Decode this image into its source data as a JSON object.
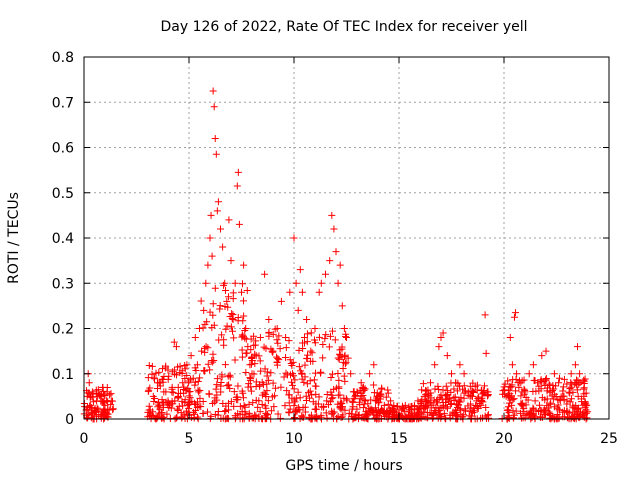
{
  "chart_data": {
    "type": "scatter",
    "title": "Day 126 of 2022, Rate Of TEC Index for receiver yell",
    "xlabel": "GPS time / hours",
    "ylabel": "ROTI / TECUs",
    "xlim": [
      0,
      25
    ],
    "ylim": [
      0,
      0.8
    ],
    "xticks": [
      0,
      5,
      10,
      15,
      20,
      25
    ],
    "xtick_labels": [
      "0",
      "5",
      "10",
      "15",
      "20",
      "25"
    ],
    "yticks": [
      0,
      0.1,
      0.2,
      0.3,
      0.4,
      0.5,
      0.6,
      0.7,
      0.8
    ],
    "ytick_labels": [
      "0",
      "0.1",
      "0.2",
      "0.3",
      "0.4",
      "0.5",
      "0.6",
      "0.7",
      "0.8"
    ],
    "grid": true,
    "marker": "+",
    "series": [
      {
        "name": "ROTI",
        "color": "#ff0000",
        "points": [
          [
            0.1,
            0.02
          ],
          [
            0.15,
            0.05
          ],
          [
            0.2,
            0.1
          ],
          [
            0.25,
            0.08
          ],
          [
            0.3,
            0.03
          ],
          [
            0.4,
            0.06
          ],
          [
            0.5,
            0.02
          ],
          [
            0.6,
            0.04
          ],
          [
            0.7,
            0.01
          ],
          [
            0.8,
            0.05
          ],
          [
            0.9,
            0.07
          ],
          [
            1.0,
            0.03
          ],
          [
            1.1,
            0.06
          ],
          [
            1.2,
            0.02
          ],
          [
            1.3,
            0.04
          ],
          [
            3.1,
            0.02
          ],
          [
            3.3,
            0.05
          ],
          [
            3.5,
            0.08
          ],
          [
            3.6,
            0.03
          ],
          [
            3.8,
            0.06
          ],
          [
            4.0,
            0.04
          ],
          [
            4.2,
            0.07
          ],
          [
            4.3,
            0.17
          ],
          [
            4.4,
            0.16
          ],
          [
            4.5,
            0.05
          ],
          [
            4.7,
            0.08
          ],
          [
            4.9,
            0.12
          ],
          [
            5.0,
            0.06
          ],
          [
            5.1,
            0.14
          ],
          [
            5.2,
            0.09
          ],
          [
            5.3,
            0.18
          ],
          [
            5.4,
            0.12
          ],
          [
            5.5,
            0.2
          ],
          [
            5.6,
            0.15
          ],
          [
            5.7,
            0.24
          ],
          [
            5.8,
            0.3
          ],
          [
            5.9,
            0.34
          ],
          [
            6.0,
            0.4
          ],
          [
            6.05,
            0.45
          ],
          [
            6.1,
            0.36
          ],
          [
            6.15,
            0.725
          ],
          [
            6.2,
            0.69
          ],
          [
            6.25,
            0.62
          ],
          [
            6.3,
            0.585
          ],
          [
            6.35,
            0.46
          ],
          [
            6.4,
            0.48
          ],
          [
            6.5,
            0.42
          ],
          [
            6.6,
            0.38
          ],
          [
            6.7,
            0.3
          ],
          [
            6.8,
            0.26
          ],
          [
            6.9,
            0.44
          ],
          [
            7.0,
            0.35
          ],
          [
            7.1,
            0.22
          ],
          [
            7.2,
            0.3
          ],
          [
            7.3,
            0.515
          ],
          [
            7.35,
            0.545
          ],
          [
            7.4,
            0.43
          ],
          [
            7.5,
            0.28
          ],
          [
            7.6,
            0.34
          ],
          [
            7.7,
            0.2
          ],
          [
            7.8,
            0.16
          ],
          [
            7.9,
            0.12
          ],
          [
            8.0,
            0.1
          ],
          [
            8.2,
            0.14
          ],
          [
            8.4,
            0.18
          ],
          [
            8.6,
            0.32
          ],
          [
            8.8,
            0.22
          ],
          [
            9.0,
            0.15
          ],
          [
            9.2,
            0.2
          ],
          [
            9.4,
            0.26
          ],
          [
            9.6,
            0.18
          ],
          [
            9.8,
            0.28
          ],
          [
            10.0,
            0.4
          ],
          [
            10.1,
            0.3
          ],
          [
            10.2,
            0.24
          ],
          [
            10.3,
            0.33
          ],
          [
            10.4,
            0.28
          ],
          [
            10.5,
            0.18
          ],
          [
            10.6,
            0.22
          ],
          [
            10.8,
            0.15
          ],
          [
            11.0,
            0.2
          ],
          [
            11.2,
            0.28
          ],
          [
            11.3,
            0.3
          ],
          [
            11.5,
            0.32
          ],
          [
            11.7,
            0.35
          ],
          [
            11.8,
            0.45
          ],
          [
            11.9,
            0.42
          ],
          [
            12.0,
            0.37
          ],
          [
            12.1,
            0.3
          ],
          [
            12.2,
            0.34
          ],
          [
            12.3,
            0.25
          ],
          [
            12.4,
            0.2
          ],
          [
            12.5,
            0.18
          ],
          [
            12.7,
            0.1
          ],
          [
            13.0,
            0.06
          ],
          [
            13.2,
            0.08
          ],
          [
            13.4,
            0.04
          ],
          [
            13.6,
            0.1
          ],
          [
            13.8,
            0.12
          ],
          [
            14.0,
            0.05
          ],
          [
            14.3,
            0.03
          ],
          [
            14.6,
            0.04
          ],
          [
            15.0,
            0.02
          ],
          [
            15.3,
            0.03
          ],
          [
            15.6,
            0.02
          ],
          [
            15.9,
            0.04
          ],
          [
            16.2,
            0.05
          ],
          [
            16.5,
            0.08
          ],
          [
            16.7,
            0.12
          ],
          [
            16.9,
            0.16
          ],
          [
            17.0,
            0.18
          ],
          [
            17.1,
            0.19
          ],
          [
            17.3,
            0.14
          ],
          [
            17.5,
            0.1
          ],
          [
            17.7,
            0.08
          ],
          [
            17.9,
            0.12
          ],
          [
            18.1,
            0.1
          ],
          [
            18.3,
            0.06
          ],
          [
            18.5,
            0.05
          ],
          [
            18.7,
            0.04
          ],
          [
            18.9,
            0.03
          ],
          [
            19.1,
            0.23
          ],
          [
            19.15,
            0.145
          ],
          [
            19.2,
            0.06
          ],
          [
            20.1,
            0.05
          ],
          [
            20.3,
            0.18
          ],
          [
            20.4,
            0.12
          ],
          [
            20.5,
            0.225
          ],
          [
            20.55,
            0.235
          ],
          [
            20.6,
            0.1
          ],
          [
            20.8,
            0.08
          ],
          [
            21.0,
            0.06
          ],
          [
            21.2,
            0.1
          ],
          [
            21.4,
            0.12
          ],
          [
            21.6,
            0.08
          ],
          [
            21.8,
            0.14
          ],
          [
            22.0,
            0.15
          ],
          [
            22.2,
            0.06
          ],
          [
            22.4,
            0.1
          ],
          [
            22.6,
            0.08
          ],
          [
            22.8,
            0.05
          ],
          [
            23.0,
            0.04
          ],
          [
            23.2,
            0.1
          ],
          [
            23.4,
            0.12
          ],
          [
            23.5,
            0.16
          ],
          [
            23.6,
            0.1
          ],
          [
            23.8,
            0.05
          ],
          [
            23.9,
            0.03
          ]
        ],
        "dense_bands": [
          {
            "x": [
              0.0,
              1.4
            ],
            "ymax": 0.07
          },
          {
            "x": [
              3.0,
              5.5
            ],
            "ymax": 0.12
          },
          {
            "x": [
              5.5,
              7.8
            ],
            "ymax": 0.3
          },
          {
            "x": [
              7.8,
              12.6
            ],
            "ymax": 0.2
          },
          {
            "x": [
              12.6,
              14.5
            ],
            "ymax": 0.08
          },
          {
            "x": [
              14.5,
              16.0
            ],
            "ymax": 0.03
          },
          {
            "x": [
              16.0,
              19.3
            ],
            "ymax": 0.08
          },
          {
            "x": [
              19.9,
              24.0
            ],
            "ymax": 0.09
          }
        ]
      }
    ]
  }
}
